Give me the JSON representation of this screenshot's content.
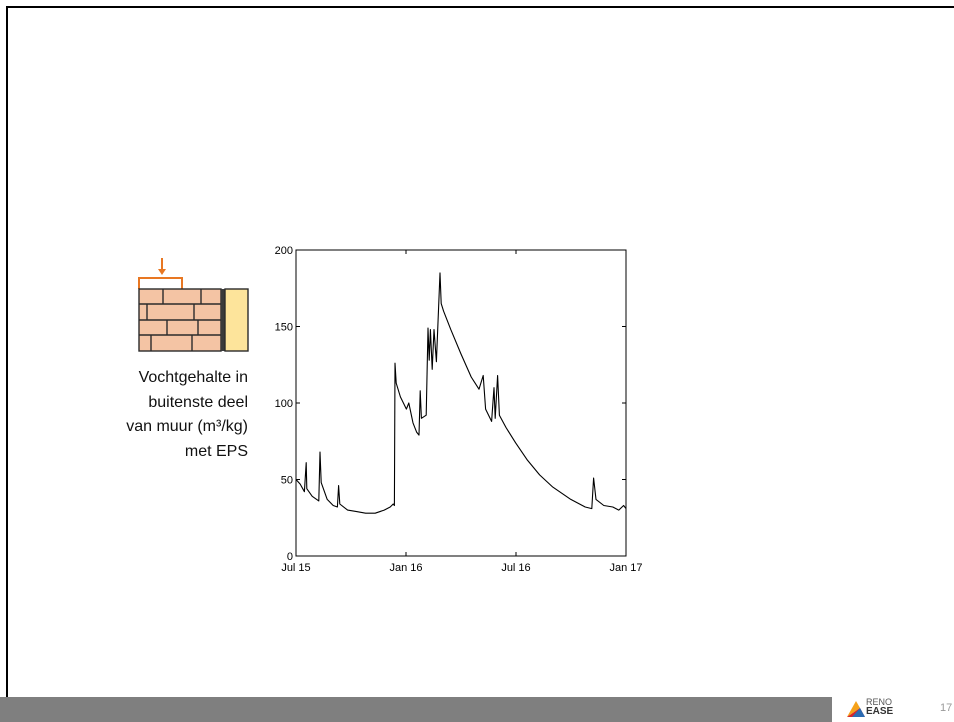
{
  "caption": {
    "lines": [
      "Vochtgehalte in",
      "buitenste deel",
      "van muur (m³/kg)",
      "met EPS"
    ]
  },
  "footer": {
    "logo_line1": "RENO",
    "logo_line2": "EASE",
    "page_number": "17"
  },
  "colors": {
    "accent": "#e87722",
    "brick": "#f4c4a4",
    "insulation": "#fde49b",
    "footer": "#7f7f7f"
  },
  "chart_data": {
    "type": "line",
    "title": "",
    "xlabel": "",
    "ylabel": "",
    "x_ticks": [
      "Jul 15",
      "Jan 16",
      "Jul 16",
      "Jan 17"
    ],
    "x_range": [
      "2015-07-01",
      "2017-01-01"
    ],
    "y_ticks": [
      0,
      50,
      100,
      150,
      200
    ],
    "ylim": [
      0,
      200
    ],
    "grid": false,
    "series": [
      {
        "points": [
          [
            "2015-07-01",
            50
          ],
          [
            "2015-07-08",
            47
          ],
          [
            "2015-07-15",
            42
          ],
          [
            "2015-07-18",
            61
          ],
          [
            "2015-07-19",
            44
          ],
          [
            "2015-07-28",
            39
          ],
          [
            "2015-08-08",
            36
          ],
          [
            "2015-08-10",
            68
          ],
          [
            "2015-08-12",
            48
          ],
          [
            "2015-08-22",
            37
          ],
          [
            "2015-09-01",
            33
          ],
          [
            "2015-09-08",
            32
          ],
          [
            "2015-09-10",
            46
          ],
          [
            "2015-09-12",
            34
          ],
          [
            "2015-09-25",
            30
          ],
          [
            "2015-10-10",
            29
          ],
          [
            "2015-10-25",
            28
          ],
          [
            "2015-11-10",
            28
          ],
          [
            "2015-11-25",
            30
          ],
          [
            "2015-12-05",
            32
          ],
          [
            "2015-12-10",
            34
          ],
          [
            "2015-12-12",
            33
          ],
          [
            "2015-12-13",
            126
          ],
          [
            "2015-12-15",
            113
          ],
          [
            "2015-12-22",
            104
          ],
          [
            "2016-01-01",
            96
          ],
          [
            "2016-01-05",
            100
          ],
          [
            "2016-01-12",
            87
          ],
          [
            "2016-01-18",
            81
          ],
          [
            "2016-01-22",
            79
          ],
          [
            "2016-01-24",
            108
          ],
          [
            "2016-01-26",
            90
          ],
          [
            "2016-02-03",
            92
          ],
          [
            "2016-02-06",
            149
          ],
          [
            "2016-02-08",
            128
          ],
          [
            "2016-02-10",
            148
          ],
          [
            "2016-02-13",
            122
          ],
          [
            "2016-02-16",
            148
          ],
          [
            "2016-02-20",
            127
          ],
          [
            "2016-02-26",
            185
          ],
          [
            "2016-02-28",
            165
          ],
          [
            "2016-03-03",
            160
          ],
          [
            "2016-03-15",
            148
          ],
          [
            "2016-04-01",
            132
          ],
          [
            "2016-04-18",
            117
          ],
          [
            "2016-05-01",
            109
          ],
          [
            "2016-05-08",
            118
          ],
          [
            "2016-05-12",
            96
          ],
          [
            "2016-05-22",
            88
          ],
          [
            "2016-05-26",
            110
          ],
          [
            "2016-05-28",
            90
          ],
          [
            "2016-06-01",
            118
          ],
          [
            "2016-06-04",
            92
          ],
          [
            "2016-06-15",
            84
          ],
          [
            "2016-07-01",
            74
          ],
          [
            "2016-07-20",
            63
          ],
          [
            "2016-08-10",
            53
          ],
          [
            "2016-09-01",
            45
          ],
          [
            "2016-10-01",
            37
          ],
          [
            "2016-10-25",
            32
          ],
          [
            "2016-11-05",
            31
          ],
          [
            "2016-11-08",
            51
          ],
          [
            "2016-11-12",
            37
          ],
          [
            "2016-11-25",
            33
          ],
          [
            "2016-12-10",
            32
          ],
          [
            "2016-12-20",
            30
          ],
          [
            "2016-12-28",
            33
          ],
          [
            "2017-01-01",
            31
          ]
        ]
      }
    ]
  }
}
